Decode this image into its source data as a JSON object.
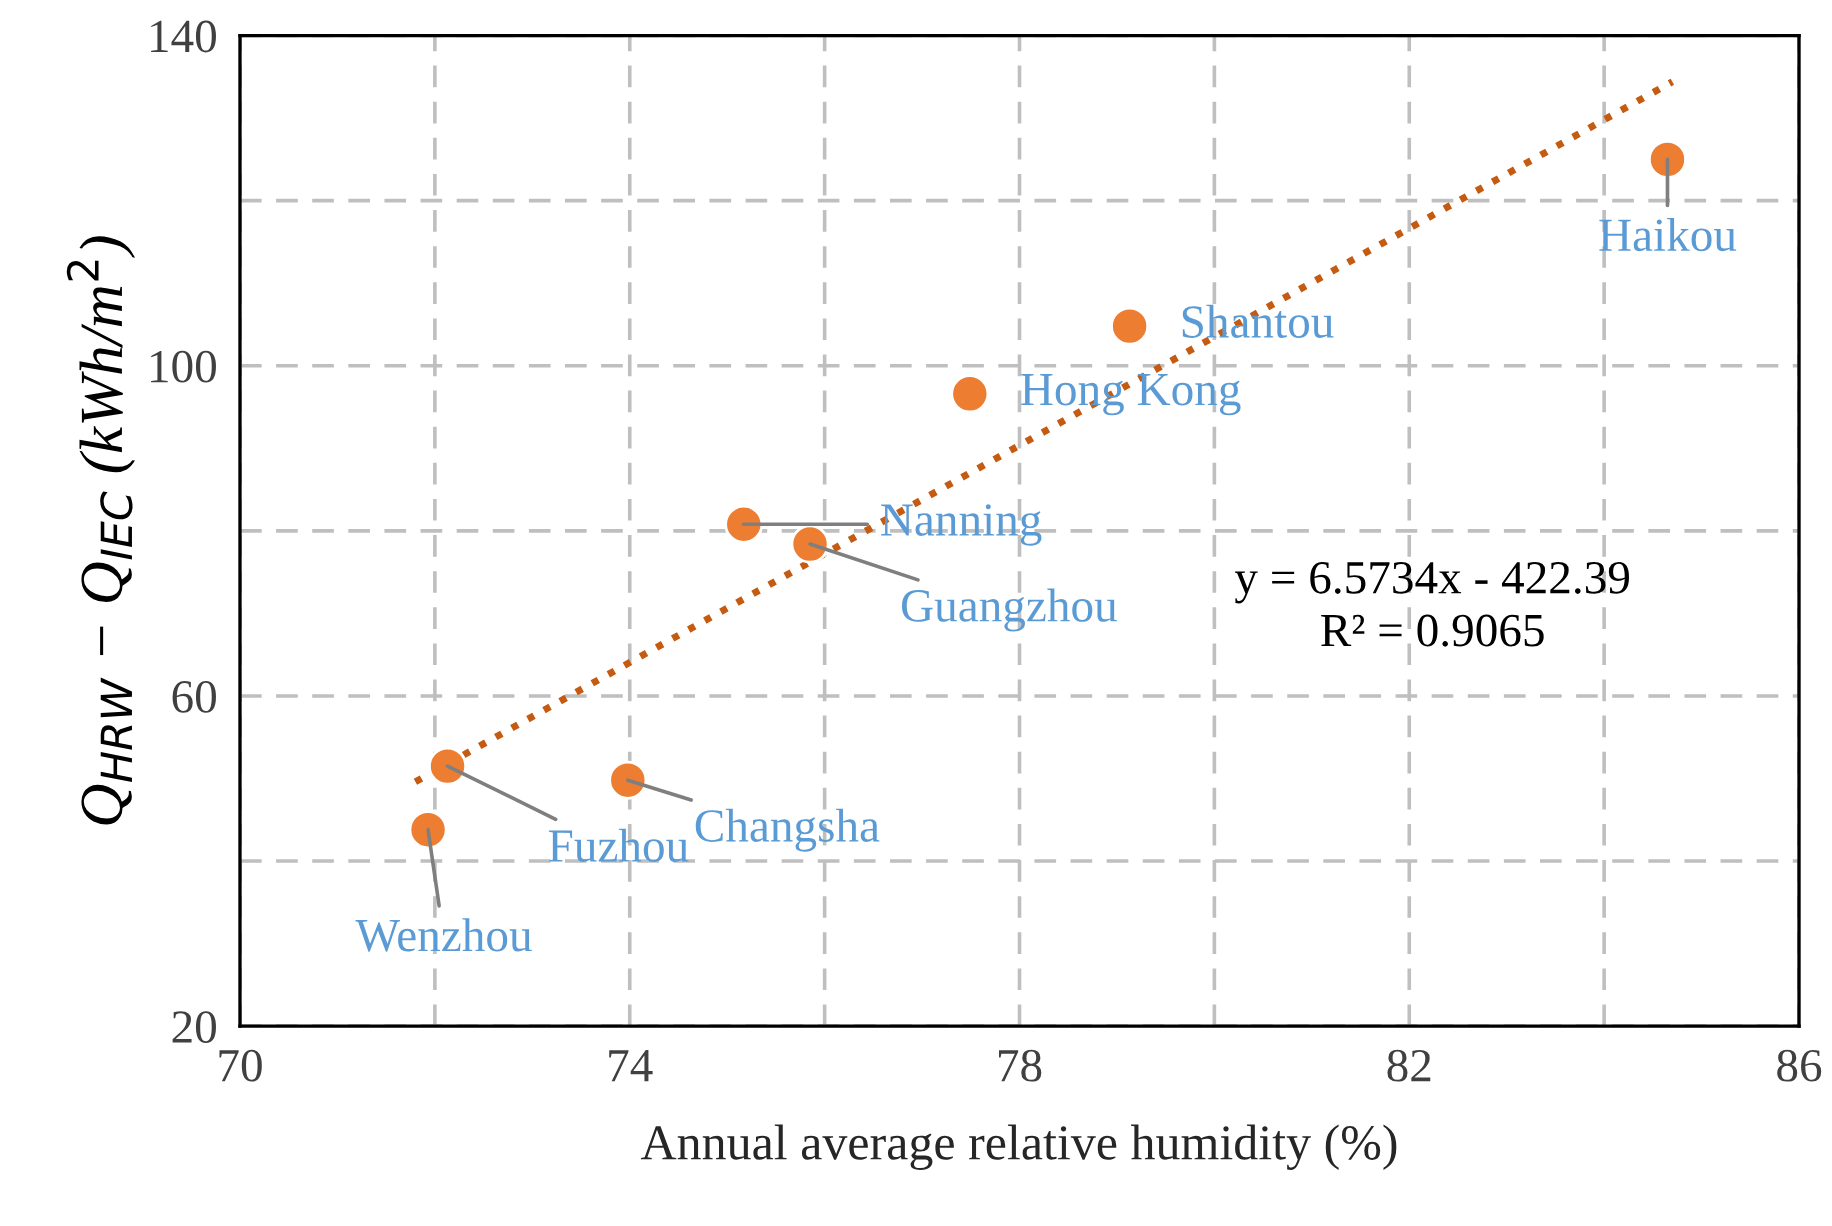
{
  "chart_data": {
    "type": "scatter",
    "xlabel": "Annual average relative humidity (%)",
    "ylabel": "Q$_{HRW}$ − Q$_{IEC}$ (kWh/m$^{2}$)",
    "series": [
      {
        "type": "scatter",
        "color": "#ed7d31",
        "x": [
          71.93,
          72.13,
          73.98,
          75.17,
          75.85,
          77.49,
          79.13,
          84.65
        ],
        "values": [
          43.8,
          51.5,
          49.8,
          80.8,
          78.4,
          96.6,
          104.8,
          125.0
        ]
      },
      {
        "type": "line",
        "color": "#c55a11",
        "line_style": "dotted",
        "marker": "none",
        "x": [
          71.8,
          84.7
        ],
        "values": [
          49.6,
          134.4
        ]
      }
    ],
    "annotations": [
      {
        "text": "Wenzhou",
        "x": 71.93,
        "y": 43.8
      },
      {
        "text": "Fuzhou",
        "x": 72.13,
        "y": 51.5
      },
      {
        "text": "Changsha",
        "x": 73.98,
        "y": 49.8
      },
      {
        "text": "Nanning",
        "x": 75.17,
        "y": 80.8
      },
      {
        "text": "Guangzhou",
        "x": 75.85,
        "y": 78.4
      },
      {
        "text": "Hong Kong",
        "x": 77.49,
        "y": 96.6
      },
      {
        "text": "Shantou",
        "x": 79.13,
        "y": 104.8
      },
      {
        "text": "Haikou",
        "x": 84.65,
        "y": 125.0
      },
      "y = 6.5734x - 422.39\nR² = 0.9065"
    ],
    "xlim": [
      70,
      86
    ],
    "xticks": [
      70,
      {
        "value": 72,
        "label": null
      },
      74,
      {
        "value": 76,
        "label": null
      },
      78,
      {
        "value": 80,
        "label": null
      },
      82,
      {
        "value": 84,
        "label": null
      },
      86
    ],
    "ylim": [
      20,
      140
    ],
    "yticks": [
      20,
      {
        "value": 40,
        "label": null
      },
      60,
      {
        "value": 80,
        "label": null
      },
      100,
      {
        "value": 120,
        "label": null
      },
      140
    ],
    "grid": true,
    "legend": false,
    "marker": "circle"
  }
}
